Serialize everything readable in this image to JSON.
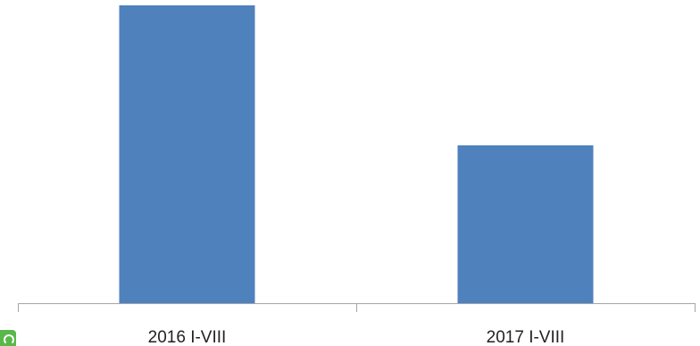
{
  "chart_data": {
    "type": "bar",
    "categories": [
      "2016 I-VIII",
      "2017 I-VIII"
    ],
    "values": [
      100,
      53
    ],
    "ylim": [
      0,
      100
    ],
    "title": "",
    "xlabel": "",
    "ylabel": "",
    "grid": false,
    "legend": "none",
    "colors": {
      "bar": "#4f81bd",
      "axis": "#a6a6a6"
    }
  },
  "badge": {
    "icon": "logo-icon",
    "color": "#59b84a"
  }
}
